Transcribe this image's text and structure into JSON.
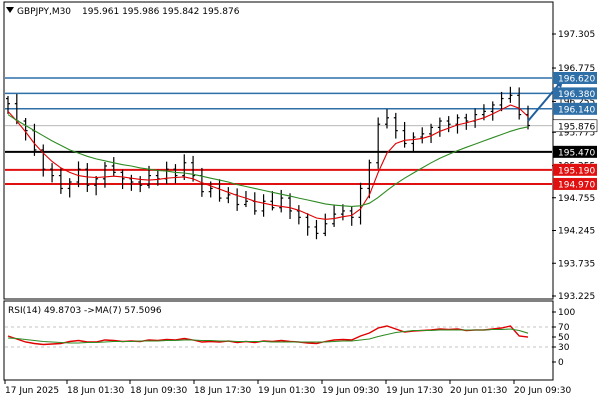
{
  "header": {
    "symbol_label": "GBPJPY,M30",
    "ohlc_label": "195.961 195.986 195.842 195.876",
    "collapse_icon": "triangle-down-icon"
  },
  "colors": {
    "candle": "#000000",
    "ma_fast": "#e00000",
    "ma_slow": "#2e8b22",
    "level_blue": "#2f6fa8",
    "level_red": "#e01010",
    "level_black": "#000000",
    "label_blue_bg": "#2f6fa8",
    "label_red_bg": "#e01010",
    "label_black_bg": "#000000",
    "current_price_bg": "#ffffff",
    "arrow": "#1f5f9f",
    "rsi_line": "#e00000",
    "rsi_ma": "#2e8b22",
    "grid": "#c8c8c8"
  },
  "chart_data": [
    {
      "type": "candlestick",
      "symbol": "GBPJPY",
      "timeframe": "M30",
      "ohlc": {
        "open": 195.961,
        "high": 195.986,
        "low": 195.842,
        "close": 195.876
      },
      "ylim": [
        193.225,
        197.305
      ],
      "y_ticks": [
        "197.305",
        "196.775",
        "196.255",
        "195.775",
        "195.255",
        "194.755",
        "194.245",
        "193.735",
        "193.225"
      ],
      "x_ticks": [
        "17 Jun 2025",
        "18 Jun 01:30",
        "18 Jun 09:30",
        "18 Jun 17:30",
        "19 Jun 01:30",
        "19 Jun 09:30",
        "19 Jun 17:30",
        "20 Jun 01:30",
        "20 Jun 09:30"
      ],
      "closes": [
        196.22,
        195.95,
        195.8,
        195.5,
        195.2,
        195.1,
        194.9,
        195.0,
        195.2,
        194.95,
        195.05,
        195.25,
        195.15,
        195.05,
        195.0,
        194.95,
        195.1,
        195.05,
        195.2,
        195.1,
        195.3,
        195.1,
        194.85,
        194.9,
        194.75,
        194.8,
        194.65,
        194.7,
        194.55,
        194.7,
        194.6,
        194.75,
        194.55,
        194.45,
        194.3,
        194.2,
        194.35,
        194.5,
        194.55,
        194.45,
        194.9,
        195.3,
        195.9,
        196.0,
        195.8,
        195.6,
        195.7,
        195.75,
        195.85,
        195.95,
        195.9,
        196.0,
        195.95,
        196.05,
        196.1,
        196.2,
        196.3,
        196.35,
        196.05,
        195.88
      ],
      "series": [
        {
          "name": "MA fast",
          "values": [
            196.1,
            195.95,
            195.78,
            195.6,
            195.45,
            195.32,
            195.22,
            195.15,
            195.1,
            195.08,
            195.07,
            195.08,
            195.09,
            195.08,
            195.06,
            195.04,
            195.03,
            195.04,
            195.06,
            195.07,
            195.08,
            195.05,
            194.99,
            194.94,
            194.89,
            194.84,
            194.79,
            194.75,
            194.7,
            194.67,
            194.64,
            194.62,
            194.6,
            194.56,
            194.5,
            194.44,
            194.42,
            194.43,
            194.46,
            194.48,
            194.58,
            194.8,
            195.15,
            195.45,
            195.6,
            195.65,
            195.66,
            195.68,
            195.72,
            195.79,
            195.84,
            195.89,
            195.92,
            195.96,
            196.0,
            196.06,
            196.13,
            196.2,
            196.15,
            196.02
          ]
        },
        {
          "name": "MA slow",
          "values": [
            196.05,
            195.96,
            195.88,
            195.8,
            195.72,
            195.64,
            195.57,
            195.5,
            195.45,
            195.4,
            195.36,
            195.33,
            195.3,
            195.27,
            195.25,
            195.22,
            195.2,
            195.18,
            195.17,
            195.15,
            195.14,
            195.12,
            195.09,
            195.06,
            195.03,
            195.0,
            194.96,
            194.93,
            194.9,
            194.87,
            194.84,
            194.81,
            194.78,
            194.75,
            194.72,
            194.69,
            194.66,
            194.64,
            194.63,
            194.62,
            194.63,
            194.67,
            194.76,
            194.87,
            194.97,
            195.06,
            195.14,
            195.22,
            195.3,
            195.37,
            195.43,
            195.49,
            195.54,
            195.59,
            195.64,
            195.69,
            195.74,
            195.79,
            195.83,
            195.86
          ]
        }
      ],
      "levels": [
        {
          "value": 196.62,
          "label": "196.620",
          "color": "blue"
        },
        {
          "value": 196.38,
          "label": "196.380",
          "color": "blue"
        },
        {
          "value": 196.14,
          "label": "196.140",
          "color": "blue"
        },
        {
          "value": 195.47,
          "label": "195.470",
          "color": "black"
        },
        {
          "value": 195.19,
          "label": "195.190",
          "color": "red"
        },
        {
          "value": 194.97,
          "label": "194.970",
          "color": "red"
        }
      ],
      "current_price": {
        "value": 195.876,
        "label": "195.876"
      },
      "arrow": {
        "from": [
          59,
          195.95
        ],
        "to": [
          63,
          196.6
        ]
      }
    },
    {
      "type": "line",
      "indicator_label": "RSI(14) 49.8703 ->MA(7) 57.5096",
      "ylim": [
        0,
        100
      ],
      "y_ticks": [
        "100",
        "70",
        "50",
        "30",
        "0"
      ],
      "reference_lines": [
        70,
        30
      ],
      "series": [
        {
          "name": "RSI(14)",
          "values": [
            52,
            46,
            40,
            37,
            35,
            36,
            37,
            41,
            43,
            40,
            40,
            44,
            43,
            41,
            42,
            41,
            44,
            43,
            45,
            44,
            47,
            44,
            40,
            41,
            40,
            42,
            39,
            41,
            39,
            42,
            41,
            43,
            41,
            40,
            38,
            37,
            41,
            44,
            45,
            44,
            52,
            58,
            68,
            72,
            66,
            60,
            62,
            63,
            64,
            66,
            65,
            66,
            63,
            64,
            64,
            66,
            68,
            72,
            52,
            49.87
          ]
        },
        {
          "name": "MA(7)",
          "values": [
            48,
            47,
            45,
            43,
            41,
            40,
            39,
            38,
            38,
            39,
            39,
            40,
            41,
            41,
            41,
            42,
            42,
            42,
            43,
            43,
            44,
            44,
            43,
            43,
            42,
            42,
            41,
            41,
            41,
            41,
            40,
            40,
            40,
            40,
            40,
            40,
            40,
            41,
            42,
            42,
            44,
            46,
            51,
            55,
            59,
            61,
            63,
            63,
            63,
            64,
            64,
            64,
            64,
            64,
            64,
            65,
            65,
            66,
            63,
            57.51
          ]
        }
      ]
    }
  ]
}
